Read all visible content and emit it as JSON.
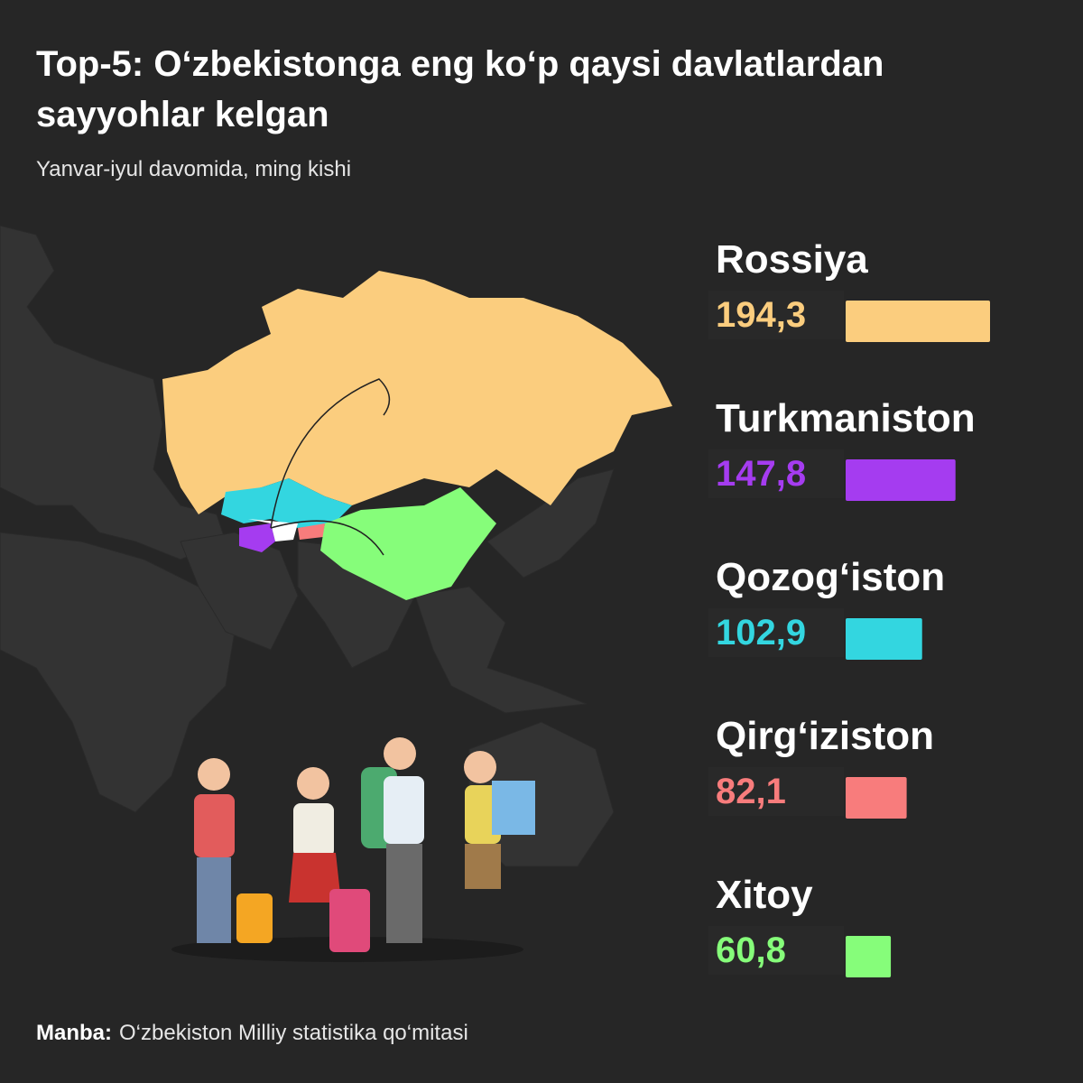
{
  "chart_data": {
    "type": "bar",
    "title": "Top-5: O‘zbekistonga eng ko‘p qaysi davlatlardan sayyohlar kelgan",
    "subtitle": "Yanvar-iyul davomida, ming kishi",
    "categories": [
      "Rossiya",
      "Turkmaniston",
      "Qozog‘iston",
      "Qirg‘iziston",
      "Xitoy"
    ],
    "values": [
      194.3,
      147.8,
      102.9,
      82.1,
      60.8
    ],
    "value_labels": [
      "194,3",
      "147,8",
      "102,9",
      "82,1",
      "60,8"
    ],
    "colors": [
      "#fbcd7e",
      "#a53cf0",
      "#33d6e0",
      "#f87c7c",
      "#86fd7a"
    ],
    "source_label": "Manba:",
    "source": "O‘zbekiston Milliy statistika qo‘mitasi"
  }
}
